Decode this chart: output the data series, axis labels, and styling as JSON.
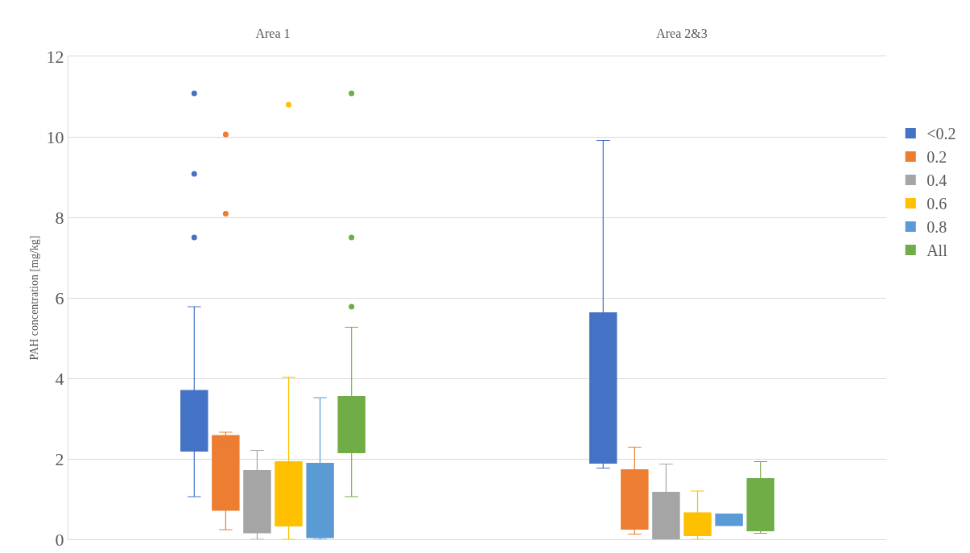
{
  "chart_data": {
    "type": "box",
    "ylabel": "PAH concentration [mg/kg]",
    "categories": [
      "Area 1",
      "Area 2&3"
    ],
    "ylim": [
      0,
      12
    ],
    "yticks": [
      0,
      2,
      4,
      6,
      8,
      10,
      12
    ],
    "grid": "y",
    "legend": "right",
    "series": [
      {
        "name": "<0.2",
        "color": "#4472c4",
        "boxes": [
          {
            "low": 1.06,
            "q1": 2.19,
            "median": 2.7,
            "q3": 3.7,
            "high": 5.78,
            "mean": 3.29,
            "outliers": [
              11.08,
              9.08,
              7.5
            ]
          },
          {
            "low": 1.77,
            "q1": 1.89,
            "median": 3.24,
            "q3": 5.63,
            "high": 9.91,
            "mean": 4.06
          }
        ]
      },
      {
        "name": "0.2",
        "color": "#ed7d31",
        "boxes": [
          {
            "low": 0.24,
            "q1": 0.72,
            "median": 1.28,
            "q3": 2.58,
            "high": 2.66,
            "mean": 2.32,
            "outliers": [
              10.06,
              8.09
            ]
          },
          {
            "low": 0.13,
            "q1": 0.25,
            "median": 0.62,
            "q3": 1.73,
            "high": 2.29,
            "mean": 0.93
          }
        ]
      },
      {
        "name": "0.4",
        "color": "#a5a5a5",
        "boxes": [
          {
            "low": 0,
            "q1": 0.16,
            "median": 0.47,
            "q3": 1.71,
            "high": 2.21,
            "mean": 0.83
          },
          {
            "low": 0,
            "q1": 0,
            "median": 0.1,
            "q3": 1.17,
            "high": 1.87,
            "mean": 0.5
          }
        ]
      },
      {
        "name": "0.6",
        "color": "#ffc000",
        "boxes": [
          {
            "low": 0,
            "q1": 0.33,
            "median": 1.04,
            "q3": 1.93,
            "high": 4.03,
            "mean": 1.72,
            "outliers": [
              10.8
            ]
          },
          {
            "low": 0,
            "q1": 0.09,
            "median": 0.19,
            "q3": 0.66,
            "high": 1.2,
            "mean": 0.37
          }
        ]
      },
      {
        "name": "0.8",
        "color": "#5b9bd5",
        "boxes": [
          {
            "low": 0,
            "q1": 0.04,
            "median": 0.61,
            "q3": 1.89,
            "high": 3.52,
            "mean": 0.95
          },
          {
            "low": 0.34,
            "q1": 0.34,
            "median": 0.34,
            "q3": 0.63,
            "high": 0.63,
            "mean": 0.43
          }
        ]
      },
      {
        "name": "All",
        "color": "#70ad47",
        "boxes": [
          {
            "low": 1.06,
            "q1": 2.15,
            "median": 2.51,
            "q3": 3.55,
            "high": 5.27,
            "mean": 3.11,
            "outliers": [
              11.08,
              7.5,
              5.78
            ]
          },
          {
            "low": 0.15,
            "q1": 0.21,
            "median": 1.0,
            "q3": 1.51,
            "high": 1.93,
            "mean": 0.89
          }
        ]
      }
    ]
  }
}
